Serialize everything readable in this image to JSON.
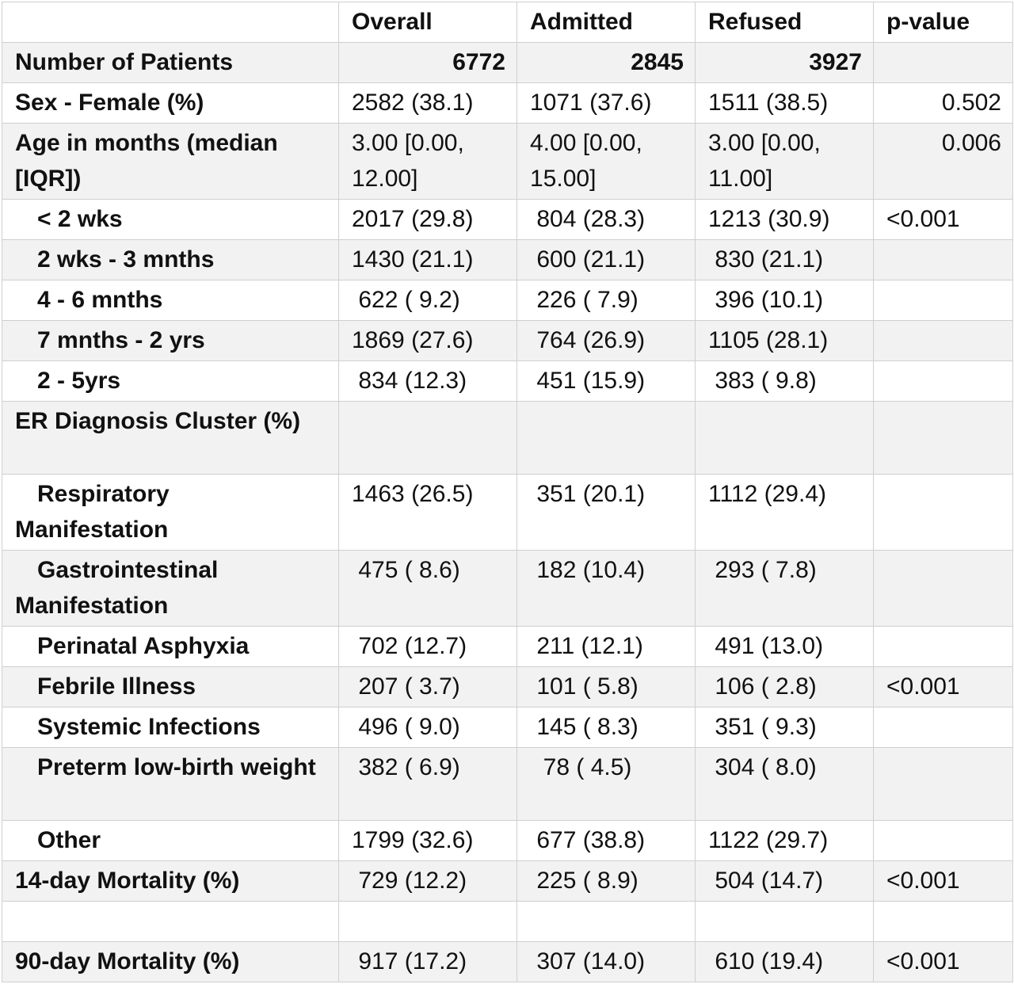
{
  "header": {
    "corner": "",
    "overall": "Overall",
    "admitted": "Admitted",
    "refused": "Refused",
    "pvalue": "p-value"
  },
  "patients": {
    "label": "Number of Patients",
    "overall": "6772",
    "admitted": "2845",
    "refused": "3927",
    "pvalue": ""
  },
  "rows": [
    {
      "label": "Sex - Female (%)",
      "overall": "2582 (38.1)",
      "admitted": "1071 (37.6)",
      "refused": "1511 (38.5)",
      "pvalue": "0.502"
    },
    {
      "label": "Age in months (median [IQR])",
      "overall": "3.00 [0.00, 12.00]",
      "admitted": "4.00 [0.00, 15.00]",
      "refused": "3.00 [0.00, 11.00]",
      "pvalue": "0.006"
    },
    {
      "label": "< 2 wks",
      "overall": "2017 (29.8)",
      "admitted": " 804 (28.3)",
      "refused": "1213 (30.9)",
      "pvalue": "<0.001"
    },
    {
      "label": "2 wks - 3 mnths",
      "overall": "1430 (21.1)",
      "admitted": " 600 (21.1)",
      "refused": " 830 (21.1)",
      "pvalue": ""
    },
    {
      "label": "4 - 6 mnths",
      "overall": " 622 ( 9.2)",
      "admitted": " 226 ( 7.9)",
      "refused": " 396 (10.1)",
      "pvalue": ""
    },
    {
      "label": "7 mnths - 2 yrs",
      "overall": "1869 (27.6)",
      "admitted": " 764 (26.9)",
      "refused": "1105 (28.1)",
      "pvalue": ""
    },
    {
      "label": "2 - 5yrs",
      "overall": " 834 (12.3)",
      "admitted": " 451 (15.9)",
      "refused": " 383 ( 9.8)",
      "pvalue": ""
    },
    {
      "label": "ER Diagnosis Cluster (%)",
      "overall": "",
      "admitted": "",
      "refused": "",
      "pvalue": ""
    },
    {
      "label": "Respiratory Manifestation",
      "overall": "1463 (26.5)",
      "admitted": " 351 (20.1)",
      "refused": "1112 (29.4)",
      "pvalue": ""
    },
    {
      "label": "Gastrointestinal Manifestation",
      "overall": " 475 ( 8.6)",
      "admitted": " 182 (10.4)",
      "refused": " 293 ( 7.8)",
      "pvalue": ""
    },
    {
      "label": "Perinatal Asphyxia",
      "overall": " 702 (12.7)",
      "admitted": " 211 (12.1)",
      "refused": " 491 (13.0)",
      "pvalue": ""
    },
    {
      "label": "Febrile Illness",
      "overall": " 207 ( 3.7)",
      "admitted": " 101 ( 5.8)",
      "refused": " 106 ( 2.8)",
      "pvalue": "<0.001"
    },
    {
      "label": "Systemic Infections",
      "overall": " 496 ( 9.0)",
      "admitted": " 145 ( 8.3)",
      "refused": " 351 ( 9.3)",
      "pvalue": ""
    },
    {
      "label": "Preterm low-birth weight",
      "overall": " 382 ( 6.9)",
      "admitted": "  78 ( 4.5)",
      "refused": " 304 ( 8.0)",
      "pvalue": ""
    },
    {
      "label": "Other",
      "overall": "1799 (32.6)",
      "admitted": " 677 (38.8)",
      "refused": "1122 (29.7)",
      "pvalue": ""
    },
    {
      "label": "14-day Mortality (%)",
      "overall": " 729 (12.2)",
      "admitted": " 225 ( 8.9)",
      "refused": " 504 (14.7)",
      "pvalue": "<0.001"
    },
    {
      "label": "",
      "overall": "",
      "admitted": "",
      "refused": "",
      "pvalue": ""
    },
    {
      "label": "90-day Mortality (%)",
      "overall": " 917 (17.2)",
      "admitted": " 307 (14.0)",
      "refused": " 610 (19.4)",
      "pvalue": "<0.001"
    }
  ]
}
